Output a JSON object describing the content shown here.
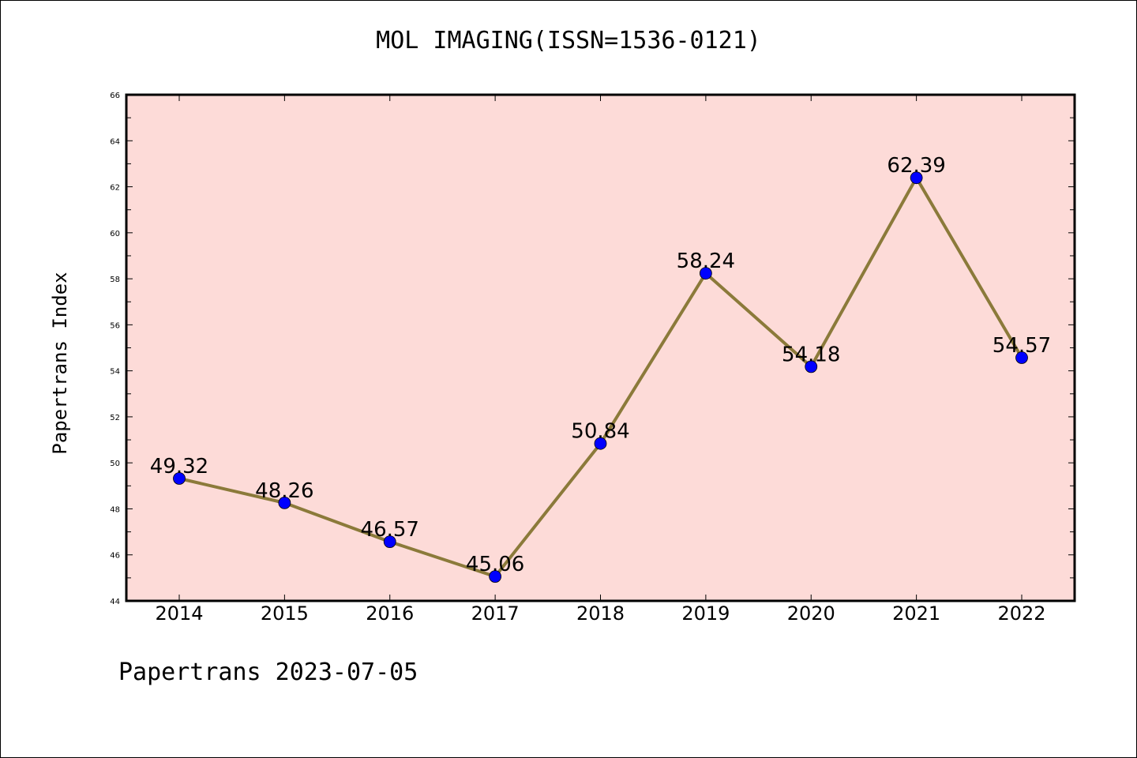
{
  "page": {
    "footer": "Papertrans 2023-07-05"
  },
  "chart_data": {
    "type": "line",
    "title": "MOL IMAGING(ISSN=1536-0121)",
    "xlabel": "",
    "ylabel": "Papertrans Index",
    "categories": [
      "2014",
      "2015",
      "2016",
      "2017",
      "2018",
      "2019",
      "2020",
      "2021",
      "2022"
    ],
    "series": [
      {
        "values": [
          49.32,
          48.26,
          46.57,
          45.06,
          50.84,
          58.24,
          54.18,
          62.39,
          54.57
        ],
        "labels": [
          "49.32",
          "48.26",
          "46.57",
          "45.06",
          "50.84",
          "58.24",
          "54.18",
          "62.39",
          "54.57"
        ],
        "line_color": "#8b7a3a",
        "marker_color": "#0000ff"
      }
    ],
    "ylim": [
      44,
      66
    ],
    "yticks": [
      "44",
      "46",
      "48",
      "50",
      "52",
      "54",
      "56",
      "58",
      "60",
      "62",
      "64",
      "66"
    ],
    "plot_background": "#fddbd8",
    "grid": false,
    "legend": "none"
  }
}
